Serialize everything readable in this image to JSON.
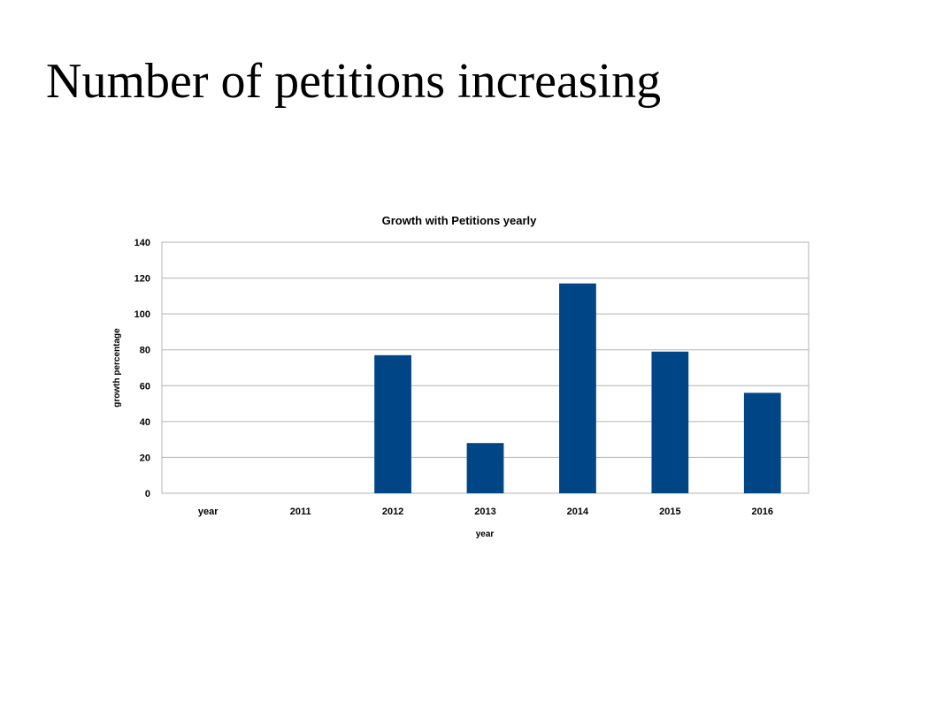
{
  "slide": {
    "title": "Number of petitions increasing"
  },
  "chart_data": {
    "type": "bar",
    "title": "Growth with Petitions yearly",
    "xlabel": "year",
    "ylabel": "growth percentage",
    "categories": [
      "year",
      "2011",
      "2012",
      "2013",
      "2014",
      "2015",
      "2016"
    ],
    "values": [
      0,
      0,
      77,
      28,
      117,
      79,
      56
    ],
    "ylim": [
      0,
      140
    ],
    "yticks": [
      0,
      20,
      40,
      60,
      80,
      100,
      120,
      140
    ],
    "grid": true,
    "legend": "none",
    "bar_color": "#004586"
  }
}
